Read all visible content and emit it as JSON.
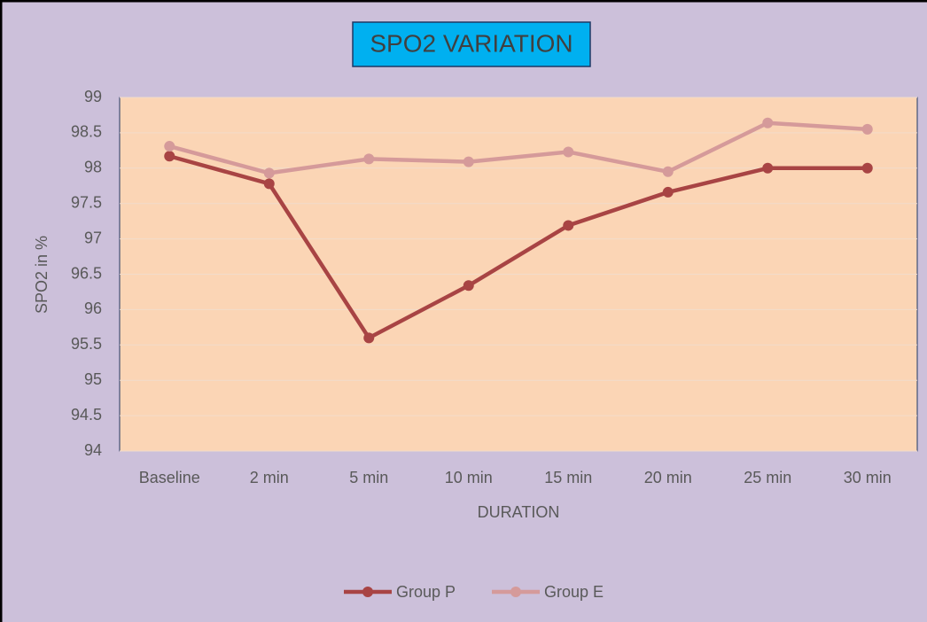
{
  "chart_data": {
    "type": "line",
    "title": "SPO2 VARIATION",
    "x_label": "DURATION",
    "y_label": "SPO2 in %",
    "categories": [
      "Baseline",
      "2 min",
      "5 min",
      "10 min",
      "15 min",
      "20 min",
      "25 min",
      "30 min"
    ],
    "series": [
      {
        "name": "Group P",
        "color": "#a84444",
        "values": [
          98.17,
          97.78,
          95.6,
          96.34,
          97.19,
          97.66,
          98,
          98
        ]
      },
      {
        "name": "Group E",
        "color": "#d59a9a",
        "values": [
          98.31,
          97.93,
          98.13,
          98.09,
          98.23,
          97.95,
          98.64,
          98.55
        ]
      }
    ],
    "ylim": [
      94,
      99
    ],
    "yticks": [
      94,
      94.5,
      95,
      95.5,
      96,
      96.5,
      97,
      97.5,
      98,
      98.5,
      99
    ],
    "grid": true,
    "legend": "bottom"
  }
}
